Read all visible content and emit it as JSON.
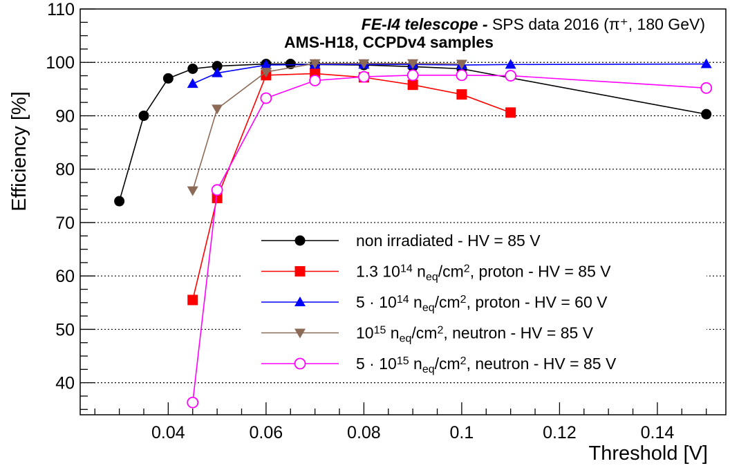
{
  "chart_data": {
    "type": "line",
    "title_italic": "FE-I4 telescope -",
    "title_rest": " SPS data 2016 (π⁺, 180 GeV)",
    "subtitle": "AMS-H18, CCPDv4 samples",
    "xlabel": "Threshold [V]",
    "ylabel": "Efficiency [%]",
    "xlim": [
      0.022,
      0.154
    ],
    "ylim": [
      34,
      110
    ],
    "x_ticks": [
      "0.04",
      "0.06",
      "0.08",
      "0.1",
      "0.12",
      "0.14"
    ],
    "x_tick_values": [
      0.04,
      0.06,
      0.08,
      0.1,
      0.12,
      0.14
    ],
    "y_ticks": [
      "40",
      "50",
      "60",
      "70",
      "80",
      "90",
      "100",
      "110"
    ],
    "y_tick_values": [
      40,
      50,
      60,
      70,
      80,
      90,
      100,
      110
    ],
    "grid": "horizontal dotted",
    "legend_position": "bottom-right",
    "series": [
      {
        "name_parts": [
          "non irradiated - HV = 85 V"
        ],
        "color": "#000000",
        "marker": "circle-filled",
        "x": [
          0.03,
          0.035,
          0.04,
          0.045,
          0.05,
          0.06,
          0.065,
          0.07,
          0.08,
          0.09,
          0.1,
          0.15
        ],
        "y": [
          74.0,
          90.0,
          97.0,
          98.8,
          99.3,
          99.7,
          99.7,
          99.6,
          99.5,
          99.2,
          98.8,
          90.3
        ]
      },
      {
        "name_parts": [
          "1.3 10",
          "14",
          " n",
          "eq",
          "/cm",
          "2",
          ", proton - HV = 85 V"
        ],
        "color": "#ff0000",
        "marker": "square-filled",
        "x": [
          0.045,
          0.05,
          0.06,
          0.07,
          0.08,
          0.09,
          0.1,
          0.11
        ],
        "y": [
          55.5,
          74.6,
          97.6,
          97.9,
          97.2,
          95.8,
          94.0,
          90.6
        ]
      },
      {
        "name_parts": [
          "5 · 10",
          "14",
          " n",
          "eq",
          "/cm",
          "2",
          ", proton - HV = 60 V"
        ],
        "color": "#0000ff",
        "marker": "triangle-up",
        "x": [
          0.045,
          0.05,
          0.06,
          0.07,
          0.08,
          0.09,
          0.1,
          0.11,
          0.15
        ],
        "y": [
          96.0,
          98.0,
          99.5,
          99.6,
          99.6,
          99.6,
          99.5,
          99.6,
          99.7
        ]
      },
      {
        "name_parts": [
          "10",
          "15",
          " n",
          "eq",
          "/cm",
          "2",
          ", neutron - HV = 85 V"
        ],
        "color": "#8b6a58",
        "marker": "triangle-down",
        "x": [
          0.045,
          0.05,
          0.06,
          0.07,
          0.08,
          0.09,
          0.1
        ],
        "y": [
          76.0,
          91.3,
          98.2,
          99.8,
          99.8,
          99.8,
          99.7
        ]
      },
      {
        "name_parts": [
          "5 · 10",
          "15",
          " n",
          "eq",
          "/cm",
          "2",
          ", neutron - HV = 85 V"
        ],
        "color": "#ff00ff",
        "marker": "circle-open",
        "x": [
          0.045,
          0.05,
          0.06,
          0.07,
          0.08,
          0.09,
          0.1,
          0.11,
          0.15
        ],
        "y": [
          36.3,
          76.1,
          93.3,
          96.6,
          97.3,
          97.6,
          97.6,
          97.5,
          95.2
        ]
      }
    ]
  }
}
